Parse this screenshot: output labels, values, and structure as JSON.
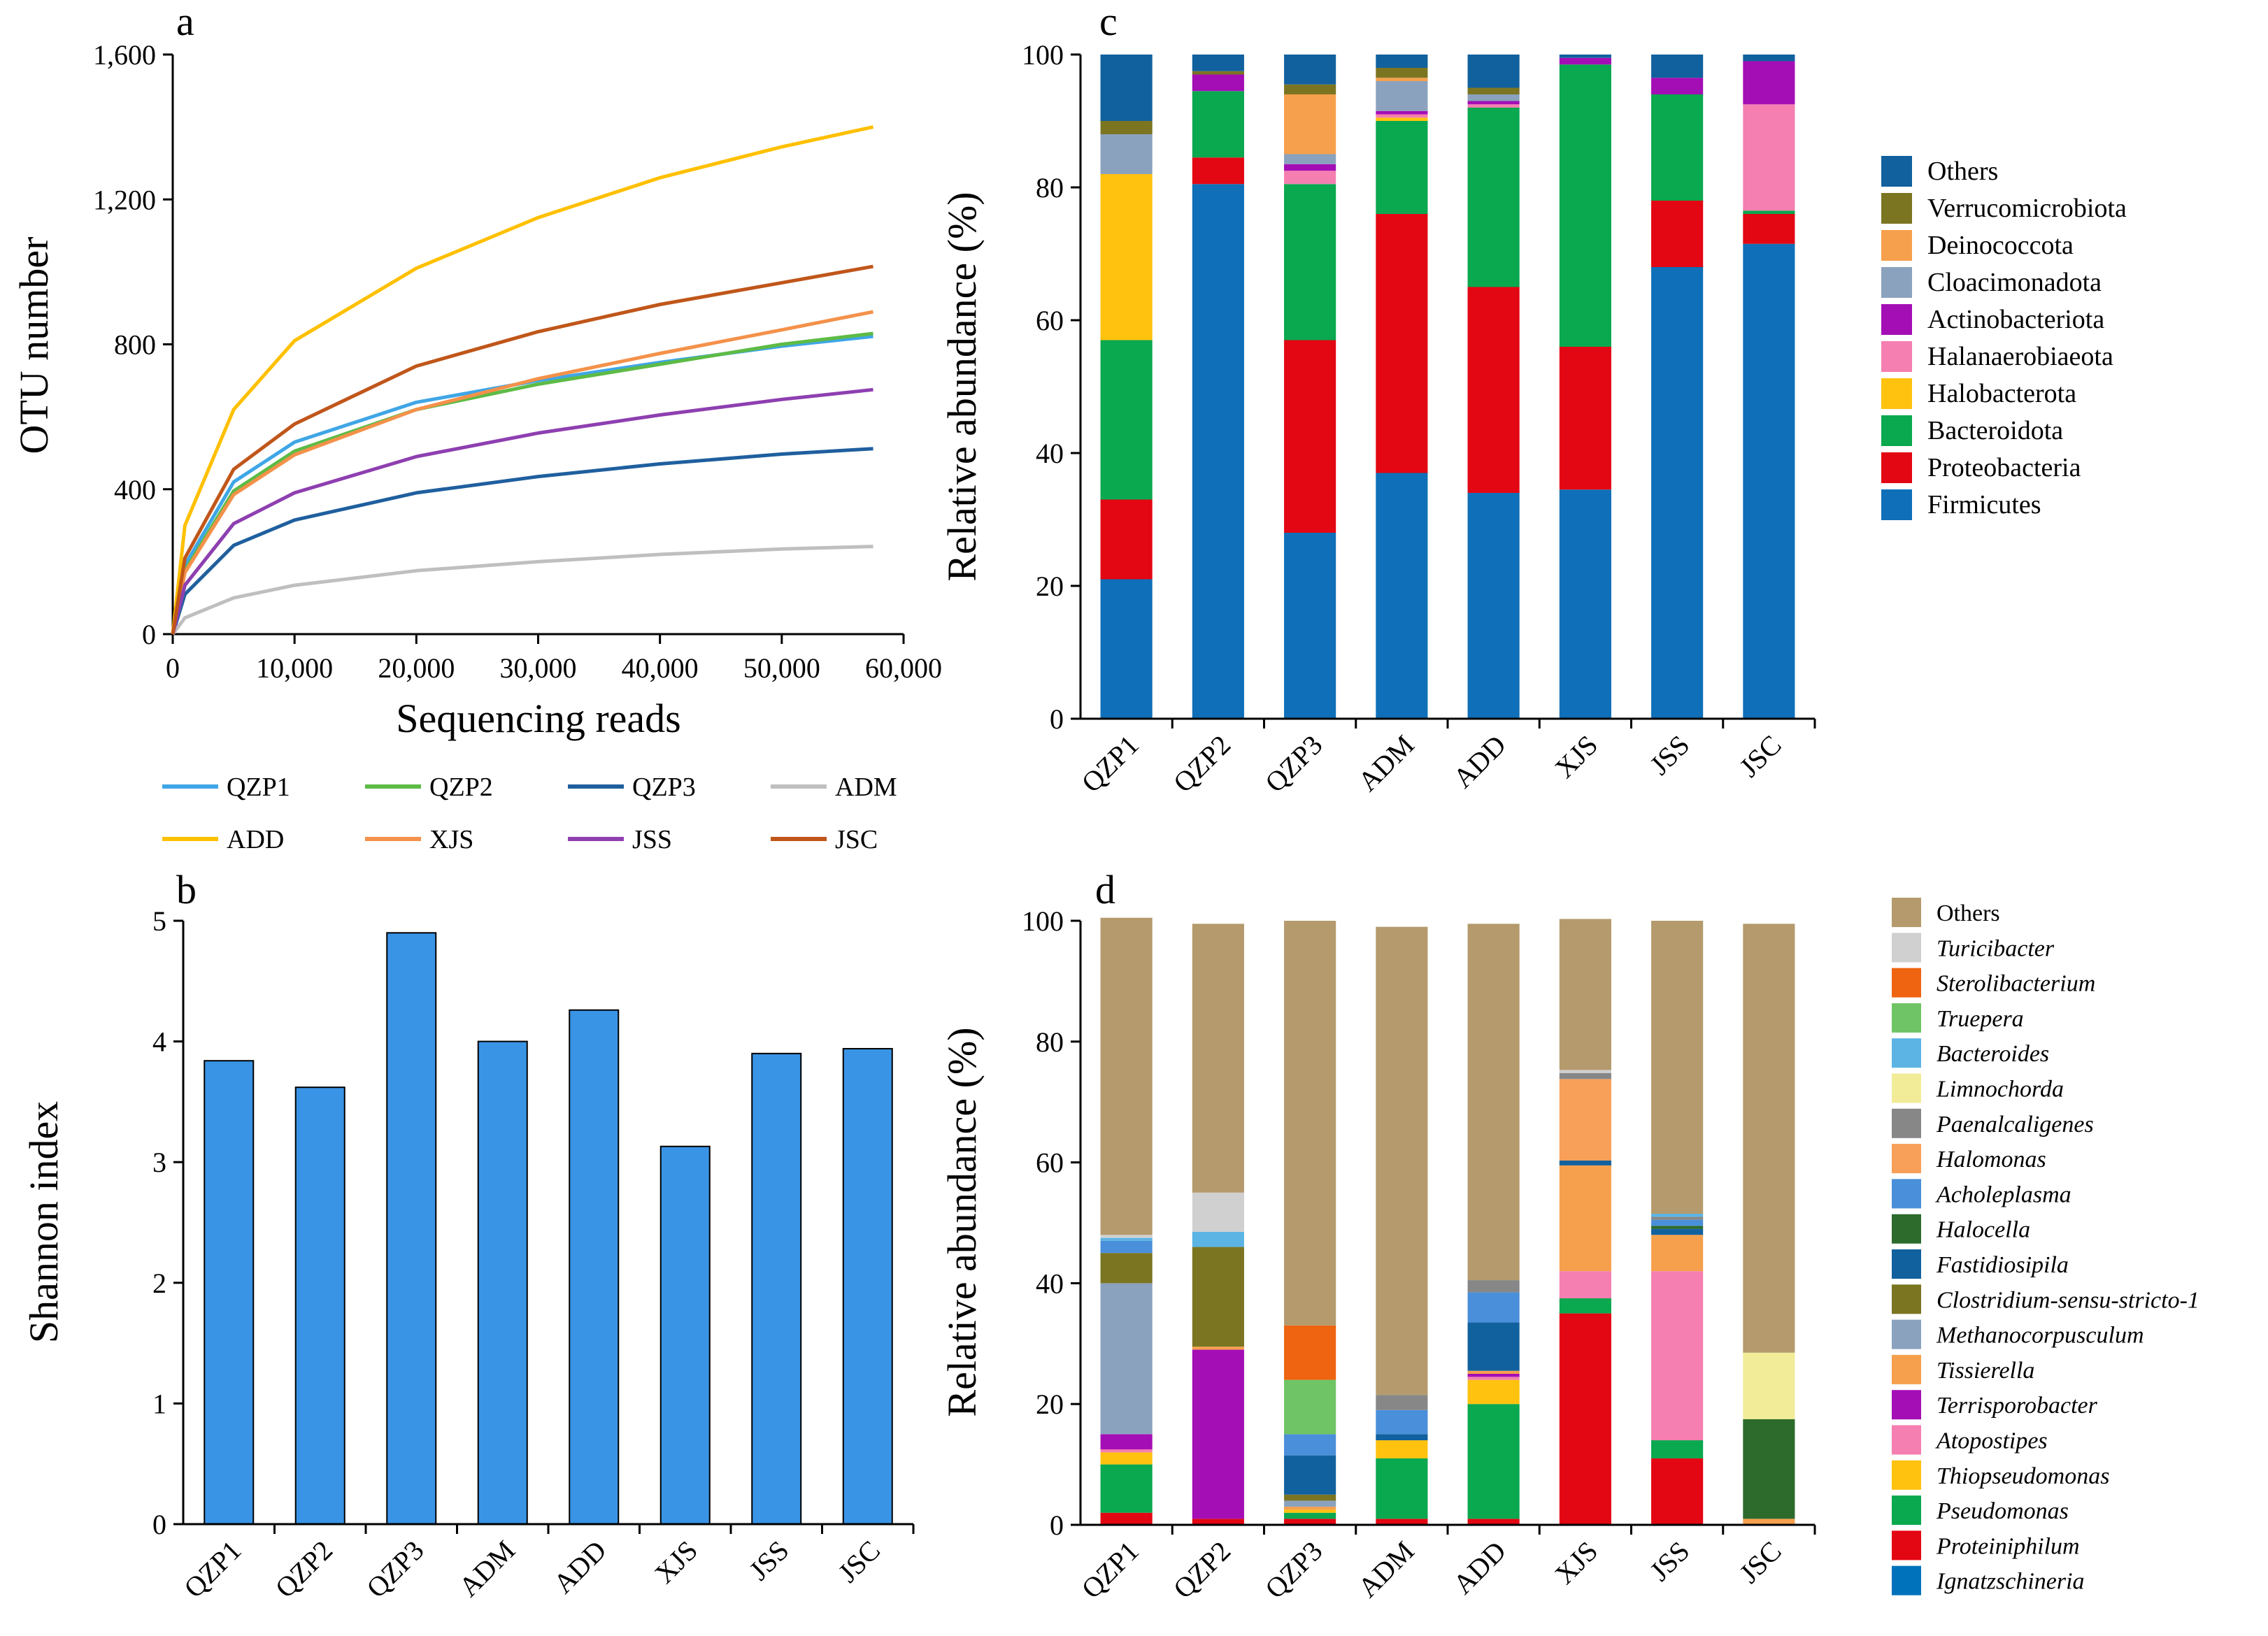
{
  "chart_data": [
    {
      "panel": "a",
      "type": "line",
      "xlabel": "Sequencing reads",
      "ylabel": "OTU number",
      "xlim": [
        0,
        60000
      ],
      "ylim": [
        0,
        1600
      ],
      "xticks": [
        0,
        10000,
        20000,
        30000,
        40000,
        50000,
        60000
      ],
      "xtick_labels": [
        "0",
        "10,000",
        "20,000",
        "30,000",
        "40,000",
        "50,000",
        "60,000"
      ],
      "yticks": [
        0,
        400,
        800,
        1200,
        1600
      ],
      "ytick_labels": [
        "0",
        "400",
        "800",
        "1,200",
        "1,600"
      ],
      "x": [
        0,
        1000,
        5000,
        10000,
        20000,
        30000,
        40000,
        50000,
        57500
      ],
      "series": [
        {
          "name": "QZP1",
          "color": "#3fa6e6",
          "values": [
            0,
            190,
            420,
            530,
            640,
            700,
            750,
            795,
            822
          ]
        },
        {
          "name": "QZP2",
          "color": "#5dbb46",
          "values": [
            0,
            175,
            395,
            505,
            620,
            690,
            745,
            800,
            830
          ]
        },
        {
          "name": "QZP3",
          "color": "#1f5f9e",
          "values": [
            0,
            110,
            245,
            315,
            390,
            435,
            470,
            497,
            512
          ]
        },
        {
          "name": "ADM",
          "color": "#bfbfbf",
          "values": [
            0,
            45,
            100,
            135,
            175,
            200,
            220,
            235,
            242
          ]
        },
        {
          "name": "ADD",
          "color": "#ffc000",
          "values": [
            0,
            300,
            620,
            810,
            1010,
            1150,
            1260,
            1345,
            1400
          ]
        },
        {
          "name": "XJS",
          "color": "#f4914a",
          "values": [
            0,
            170,
            385,
            495,
            620,
            705,
            775,
            840,
            890
          ]
        },
        {
          "name": "JSS",
          "color": "#8e3fb0",
          "values": [
            0,
            135,
            305,
            390,
            490,
            555,
            605,
            648,
            675
          ]
        },
        {
          "name": "JSC",
          "color": "#c0561a",
          "values": [
            0,
            210,
            455,
            580,
            740,
            835,
            910,
            970,
            1015
          ]
        }
      ]
    },
    {
      "panel": "b",
      "type": "bar",
      "xlabel": "",
      "ylabel": "Shannon index",
      "ylim": [
        0,
        5
      ],
      "yticks": [
        "0",
        "1",
        "2",
        "3",
        "4",
        "5"
      ],
      "categories": [
        "QZP1",
        "QZP2",
        "QZP3",
        "ADM",
        "ADD",
        "XJS",
        "JSS",
        "JSC"
      ],
      "values": [
        3.84,
        3.62,
        4.9,
        4.0,
        4.26,
        3.13,
        3.9,
        3.94
      ],
      "color": "#3a94e6"
    },
    {
      "panel": "c",
      "type": "bar",
      "stacked": true,
      "xlabel": "",
      "ylabel": "Relative abundance (%)",
      "ylim": [
        0,
        100
      ],
      "yticks": [
        "0",
        "20",
        "40",
        "60",
        "80",
        "100"
      ],
      "categories": [
        "QZP1",
        "QZP2",
        "QZP3",
        "ADM",
        "ADD",
        "XJS",
        "JSS",
        "JSC"
      ],
      "legend": [
        "Others",
        "Verrucomicrobiota",
        "Deinococcota",
        "Cloacimonadota",
        "Actinobacteriota",
        "Halanaerobiaeota",
        "Halobacterota",
        "Bacteroidota",
        "Proteobacteria",
        "Firmicutes"
      ],
      "series": [
        {
          "name": "Firmicutes",
          "color": "#0f6fb8",
          "values": [
            21,
            80.5,
            28,
            37,
            34,
            34.5,
            68,
            71.5
          ]
        },
        {
          "name": "Proteobacteria",
          "color": "#e30613",
          "values": [
            12,
            4,
            29,
            39,
            31,
            21.5,
            10,
            4.5
          ]
        },
        {
          "name": "Bacteroidota",
          "color": "#0aa84f",
          "values": [
            24,
            10,
            23.5,
            14,
            27,
            42.5,
            16,
            0.5
          ]
        },
        {
          "name": "Halobacterota",
          "color": "#ffc20e",
          "values": [
            25,
            0,
            0,
            0.5,
            0,
            0,
            0,
            0
          ]
        },
        {
          "name": "Halanaerobiaeota",
          "color": "#f47fb0",
          "values": [
            0,
            0,
            2,
            0.5,
            0.5,
            0,
            0,
            16
          ]
        },
        {
          "name": "Actinobacteriota",
          "color": "#a40eb5",
          "values": [
            0,
            2.5,
            1,
            0.5,
            0.5,
            1,
            2.5,
            6.5
          ]
        },
        {
          "name": "Cloacimonadota",
          "color": "#8aa2be",
          "values": [
            6,
            0,
            1.5,
            4.5,
            1,
            0,
            0,
            0
          ]
        },
        {
          "name": "Deinococcota",
          "color": "#f6a04d",
          "values": [
            0,
            0,
            9,
            0.5,
            0,
            0,
            0,
            0
          ]
        },
        {
          "name": "Verrucomicrobiota",
          "color": "#7b7522",
          "values": [
            2,
            0.5,
            1.5,
            1.5,
            1,
            0,
            0,
            0
          ]
        },
        {
          "name": "Others",
          "color": "#11619e",
          "values": [
            10,
            2.5,
            4.5,
            2,
            5,
            0.5,
            3.5,
            1
          ]
        }
      ]
    },
    {
      "panel": "d",
      "type": "bar",
      "stacked": true,
      "xlabel": "",
      "ylabel": "Relative abundance (%)",
      "ylim": [
        0,
        100
      ],
      "yticks": [
        "0",
        "20",
        "40",
        "60",
        "80",
        "100"
      ],
      "categories": [
        "QZP1",
        "QZP2",
        "QZP3",
        "ADM",
        "ADD",
        "XJS",
        "JSS",
        "JSC"
      ],
      "legend": [
        "Others",
        "Turicibacter",
        "Sterolibacterium",
        "Truepera",
        "Bacteroides",
        "Limnochorda",
        "Paenalcaligenes",
        "Halomonas",
        "Acholeplasma",
        "Halocella",
        "Fastidiosipila",
        "Clostridium-sensu-stricto-1",
        "Methanocorpusculum",
        "Tissierella",
        "Terrisporobacter",
        "Atopostipes",
        "Thiopseudomonas",
        "Pseudomonas",
        "Proteiniphilum",
        "Ignatzschineria"
      ],
      "italic_from_index": 1,
      "series": [
        {
          "name": "Ignatzschineria",
          "color": "#0072bc",
          "values": [
            0,
            0,
            0,
            0,
            0,
            0,
            0,
            0
          ]
        },
        {
          "name": "Proteiniphilum",
          "color": "#e30613",
          "values": [
            2,
            1,
            1,
            1,
            1,
            35,
            11,
            0
          ]
        },
        {
          "name": "Pseudomonas",
          "color": "#0aa84f",
          "values": [
            8,
            0,
            1,
            10,
            19,
            2.5,
            3,
            0
          ]
        },
        {
          "name": "Thiopseudomonas",
          "color": "#ffc20e",
          "values": [
            2,
            0,
            0.5,
            3,
            4,
            0,
            0,
            0
          ]
        },
        {
          "name": "Atopostipes",
          "color": "#f47fb0",
          "values": [
            0.5,
            0,
            0,
            0,
            0.5,
            4.5,
            28,
            0
          ]
        },
        {
          "name": "Terrisporobacter",
          "color": "#a40eb5",
          "values": [
            2.5,
            28,
            0,
            0,
            0.5,
            0,
            0,
            0
          ]
        },
        {
          "name": "Tissierella",
          "color": "#f6a04d",
          "values": [
            0,
            0.5,
            0.5,
            0,
            0.5,
            17.5,
            6,
            1
          ]
        },
        {
          "name": "Methanocorpusculum",
          "color": "#8aa2be",
          "values": [
            25,
            0,
            1,
            0,
            0,
            0,
            0,
            0
          ]
        },
        {
          "name": "Clostridium-sensu-stricto-1",
          "color": "#7b7522",
          "values": [
            5,
            16.5,
            1,
            0,
            0,
            0,
            0,
            0
          ]
        },
        {
          "name": "Fastidiosipila",
          "color": "#11619e",
          "values": [
            0,
            0,
            6.5,
            1,
            8,
            0.8,
            1,
            0
          ]
        },
        {
          "name": "Halocella",
          "color": "#2c6b2c",
          "values": [
            0,
            0,
            0,
            0,
            0,
            0,
            0.5,
            16.5
          ]
        },
        {
          "name": "Acholeplasma",
          "color": "#4a8fd9",
          "values": [
            2,
            0,
            3.5,
            4,
            5,
            0,
            1,
            0
          ]
        },
        {
          "name": "Halomonas",
          "color": "#f8a05a",
          "values": [
            0,
            0,
            0,
            0,
            0,
            13.5,
            0,
            0
          ]
        },
        {
          "name": "Paenalcaligenes",
          "color": "#878787",
          "values": [
            0,
            0,
            0,
            2.5,
            2,
            1,
            0.5,
            0
          ]
        },
        {
          "name": "Limnochorda",
          "color": "#f2ec98",
          "values": [
            0,
            0,
            0,
            0,
            0,
            0,
            0,
            11
          ]
        },
        {
          "name": "Bacteroides",
          "color": "#5bb4e4",
          "values": [
            0.5,
            2.5,
            0,
            0,
            0,
            0,
            0.5,
            0
          ]
        },
        {
          "name": "Truepera",
          "color": "#6fc565",
          "values": [
            0,
            0,
            9,
            0,
            0,
            0,
            0,
            0
          ]
        },
        {
          "name": "Sterolibacterium",
          "color": "#ee6410",
          "values": [
            0,
            0,
            9,
            0,
            0,
            0,
            0,
            0
          ]
        },
        {
          "name": "Turicibacter",
          "color": "#d0d0d0",
          "values": [
            0.5,
            6.5,
            0,
            0,
            0,
            0.5,
            0,
            0
          ]
        },
        {
          "name": "Others",
          "color": "#b49a6c",
          "values": [
            52.5,
            44.5,
            67,
            77.5,
            59,
            25,
            48.5,
            71
          ]
        }
      ]
    }
  ]
}
